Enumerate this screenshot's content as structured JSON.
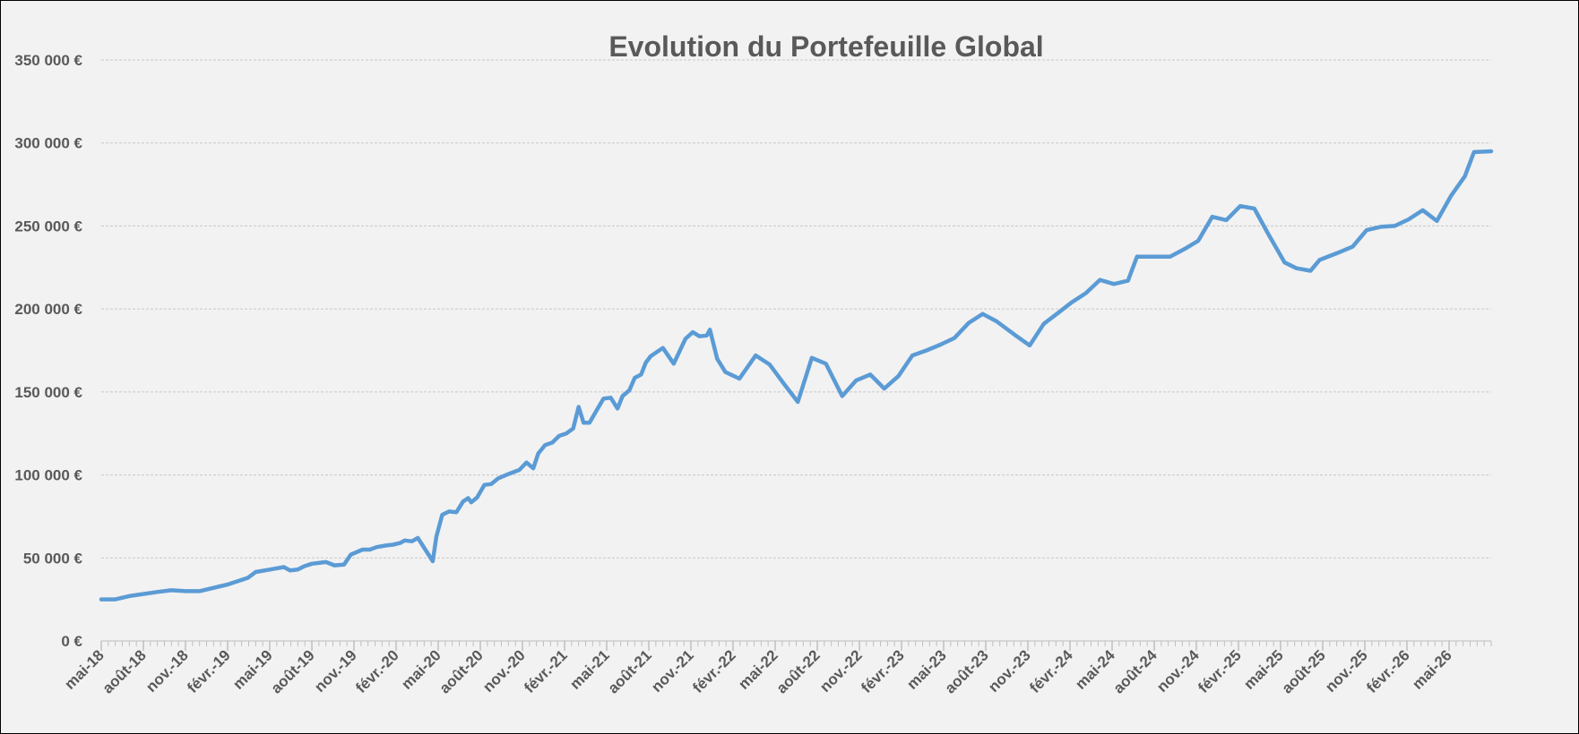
{
  "chart_data": {
    "type": "line",
    "title": "Evolution du Portefeuille Global",
    "xlabel": "",
    "ylabel": "",
    "ylim": [
      0,
      350000
    ],
    "y_ticks": [
      "0 €",
      "50 000 €",
      "100 000 €",
      "150 000 €",
      "200 000 €",
      "250 000 €",
      "300 000 €",
      "350 000 €"
    ],
    "y_tick_values": [
      0,
      50000,
      100000,
      150000,
      200000,
      250000,
      300000,
      350000
    ],
    "x_range": [
      "2018-05",
      "2026-08"
    ],
    "x_tick_labels": [
      {
        "label": "mai-18",
        "month": "2018-05"
      },
      {
        "label": "août-18",
        "month": "2018-08"
      },
      {
        "label": "nov.-18",
        "month": "2018-11"
      },
      {
        "label": "févr.-19",
        "month": "2019-02"
      },
      {
        "label": "mai-19",
        "month": "2019-05"
      },
      {
        "label": "août-19",
        "month": "2019-08"
      },
      {
        "label": "nov.-19",
        "month": "2019-11"
      },
      {
        "label": "févr.-20",
        "month": "2020-02"
      },
      {
        "label": "mai-20",
        "month": "2020-05"
      },
      {
        "label": "août-20",
        "month": "2020-08"
      },
      {
        "label": "nov.-20",
        "month": "2020-11"
      },
      {
        "label": "févr.-21",
        "month": "2021-02"
      },
      {
        "label": "mai-21",
        "month": "2021-05"
      },
      {
        "label": "août-21",
        "month": "2021-08"
      },
      {
        "label": "nov.-21",
        "month": "2021-11"
      },
      {
        "label": "févr.-22",
        "month": "2022-02"
      },
      {
        "label": "mai-22",
        "month": "2022-05"
      },
      {
        "label": "août-22",
        "month": "2022-08"
      },
      {
        "label": "nov.-22",
        "month": "2022-11"
      },
      {
        "label": "févr.-23",
        "month": "2023-02"
      },
      {
        "label": "mai-23",
        "month": "2023-05"
      },
      {
        "label": "août-23",
        "month": "2023-08"
      },
      {
        "label": "nov.-23",
        "month": "2023-11"
      },
      {
        "label": "févr.-24",
        "month": "2024-02"
      },
      {
        "label": "mai-24",
        "month": "2024-05"
      },
      {
        "label": "août-24",
        "month": "2024-08"
      },
      {
        "label": "nov.-24",
        "month": "2024-11"
      },
      {
        "label": "févr.-25",
        "month": "2025-02"
      },
      {
        "label": "mai-25",
        "month": "2025-05"
      },
      {
        "label": "août-25",
        "month": "2025-08"
      },
      {
        "label": "nov.-25",
        "month": "2025-11"
      },
      {
        "label": "févr.-26",
        "month": "2026-02"
      },
      {
        "label": "mai-26",
        "month": "2026-05"
      }
    ],
    "grid": true,
    "legend": "none",
    "colors": {
      "line": "#5b9bd5",
      "grid": "#c8c8c8",
      "text": "#595959",
      "background": "#f2f2f2"
    },
    "series": [
      {
        "points": [
          [
            "2018-05-01",
            25000
          ],
          [
            "2018-06-01",
            25000
          ],
          [
            "2018-07-01",
            27000
          ],
          [
            "2018-09-01",
            29500
          ],
          [
            "2018-10-01",
            30500
          ],
          [
            "2018-11-01",
            30000
          ],
          [
            "2018-12-01",
            30000
          ],
          [
            "2019-02-01",
            34000
          ],
          [
            "2019-03-15",
            38000
          ],
          [
            "2019-04-01",
            41500
          ],
          [
            "2019-05-01",
            43000
          ],
          [
            "2019-06-01",
            44500
          ],
          [
            "2019-06-15",
            42500
          ],
          [
            "2019-07-01",
            43000
          ],
          [
            "2019-07-15",
            45000
          ],
          [
            "2019-08-01",
            46500
          ],
          [
            "2019-09-01",
            47500
          ],
          [
            "2019-09-20",
            45500
          ],
          [
            "2019-10-10",
            46000
          ],
          [
            "2019-10-25",
            52000
          ],
          [
            "2019-11-20",
            55000
          ],
          [
            "2019-12-05",
            55000
          ],
          [
            "2019-12-20",
            56500
          ],
          [
            "2020-01-10",
            57500
          ],
          [
            "2020-01-25",
            58000
          ],
          [
            "2020-02-10",
            59000
          ],
          [
            "2020-02-20",
            60500
          ],
          [
            "2020-03-05",
            60000
          ],
          [
            "2020-03-18",
            62000
          ],
          [
            "2020-04-20",
            48000
          ],
          [
            "2020-04-28",
            63000
          ],
          [
            "2020-05-10",
            76000
          ],
          [
            "2020-05-25",
            78000
          ],
          [
            "2020-06-10",
            77500
          ],
          [
            "2020-06-25",
            84000
          ],
          [
            "2020-07-05",
            86000
          ],
          [
            "2020-07-12",
            83500
          ],
          [
            "2020-07-25",
            86500
          ],
          [
            "2020-08-10",
            94000
          ],
          [
            "2020-08-25",
            94500
          ],
          [
            "2020-09-10",
            98000
          ],
          [
            "2020-10-01",
            100500
          ],
          [
            "2020-10-25",
            103000
          ],
          [
            "2020-11-10",
            107500
          ],
          [
            "2020-11-25",
            104000
          ],
          [
            "2020-12-05",
            113000
          ],
          [
            "2020-12-20",
            118000
          ],
          [
            "2021-01-05",
            119500
          ],
          [
            "2021-01-20",
            123500
          ],
          [
            "2021-02-05",
            125000
          ],
          [
            "2021-02-20",
            128000
          ],
          [
            "2021-03-01",
            141000
          ],
          [
            "2021-03-12",
            131500
          ],
          [
            "2021-03-25",
            131500
          ],
          [
            "2021-04-10",
            139000
          ],
          [
            "2021-04-25",
            146000
          ],
          [
            "2021-05-10",
            146500
          ],
          [
            "2021-05-25",
            140000
          ],
          [
            "2021-06-05",
            147500
          ],
          [
            "2021-06-20",
            151000
          ],
          [
            "2021-07-01",
            158500
          ],
          [
            "2021-07-15",
            160500
          ],
          [
            "2021-07-25",
            167500
          ],
          [
            "2021-08-05",
            171500
          ],
          [
            "2021-09-01",
            176500
          ],
          [
            "2021-09-25",
            167000
          ],
          [
            "2021-10-20",
            182000
          ],
          [
            "2021-11-05",
            186000
          ],
          [
            "2021-11-20",
            183500
          ],
          [
            "2021-12-05",
            184000
          ],
          [
            "2021-12-12",
            187500
          ],
          [
            "2021-12-28",
            170000
          ],
          [
            "2022-01-15",
            162000
          ],
          [
            "2022-02-15",
            158000
          ],
          [
            "2022-03-20",
            172000
          ],
          [
            "2022-04-20",
            166500
          ],
          [
            "2022-05-20",
            155000
          ],
          [
            "2022-06-20",
            144000
          ],
          [
            "2022-07-20",
            170500
          ],
          [
            "2022-08-20",
            167000
          ],
          [
            "2022-09-25",
            147500
          ],
          [
            "2022-10-25",
            157000
          ],
          [
            "2022-11-25",
            160500
          ],
          [
            "2022-12-25",
            152000
          ],
          [
            "2023-01-25",
            159500
          ],
          [
            "2023-02-25",
            172000
          ],
          [
            "2023-03-25",
            175000
          ],
          [
            "2023-04-25",
            178500
          ],
          [
            "2023-05-25",
            182500
          ],
          [
            "2023-06-25",
            191500
          ],
          [
            "2023-07-25",
            197000
          ],
          [
            "2023-08-25",
            192500
          ],
          [
            "2023-10-05",
            184000
          ],
          [
            "2023-11-05",
            178000
          ],
          [
            "2023-12-05",
            191000
          ],
          [
            "2024-01-05",
            197500
          ],
          [
            "2024-02-05",
            204000
          ],
          [
            "2024-03-05",
            209500
          ],
          [
            "2024-04-05",
            217500
          ],
          [
            "2024-05-05",
            215000
          ],
          [
            "2024-06-05",
            217000
          ],
          [
            "2024-06-25",
            231500
          ],
          [
            "2024-07-25",
            231500
          ],
          [
            "2024-09-05",
            231500
          ],
          [
            "2024-10-05",
            236000
          ],
          [
            "2024-11-05",
            241000
          ],
          [
            "2024-12-05",
            255500
          ],
          [
            "2025-01-05",
            253500
          ],
          [
            "2025-02-05",
            262000
          ],
          [
            "2025-03-05",
            260500
          ],
          [
            "2025-04-05",
            245000
          ],
          [
            "2025-05-10",
            228000
          ],
          [
            "2025-06-05",
            224500
          ],
          [
            "2025-07-05",
            223000
          ],
          [
            "2025-07-25",
            229500
          ],
          [
            "2025-09-05",
            234000
          ],
          [
            "2025-10-05",
            237500
          ],
          [
            "2025-11-05",
            247500
          ],
          [
            "2025-12-05",
            249500
          ],
          [
            "2026-01-05",
            250000
          ],
          [
            "2026-02-05",
            254000
          ],
          [
            "2026-03-05",
            259500
          ],
          [
            "2026-04-05",
            253000
          ],
          [
            "2026-05-05",
            268000
          ],
          [
            "2026-06-05",
            280000
          ],
          [
            "2026-06-25",
            294500
          ],
          [
            "2026-08-01",
            295000
          ]
        ]
      }
    ]
  }
}
